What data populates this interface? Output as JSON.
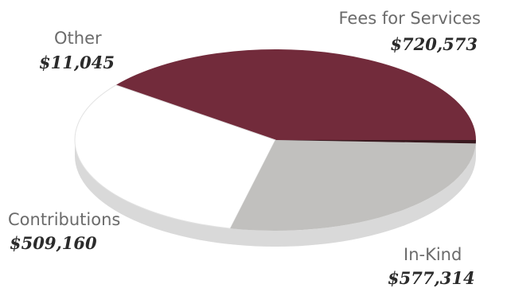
{
  "chart_data": {
    "type": "pie",
    "title": "",
    "slices": [
      {
        "label": "Fees for Services",
        "display_value": "$720,573",
        "value": 720573,
        "color": "#722b3b"
      },
      {
        "label": "In-Kind",
        "display_value": "$577,314",
        "value": 577314,
        "color": "#ffffff"
      },
      {
        "label": "Contributions",
        "display_value": "$509,160",
        "value": 509160,
        "color": "#c1c0be"
      },
      {
        "label": "Other",
        "display_value": "$11,045",
        "value": 11045,
        "color": "#3a1a20"
      }
    ],
    "colors": {
      "side": "#d9d9d9",
      "edge": "#e2e2e2"
    }
  }
}
